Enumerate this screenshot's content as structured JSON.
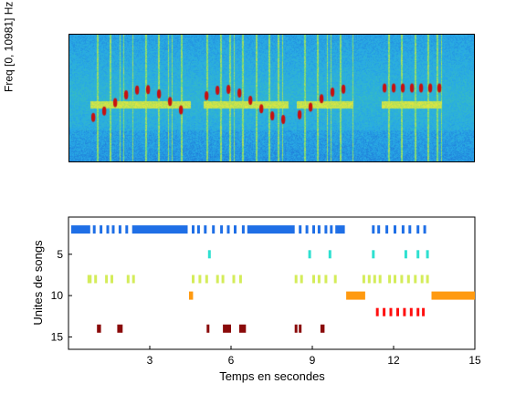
{
  "chart_data": [
    {
      "type": "heatmap",
      "ylabel": "Freq [0, 10981] Hz",
      "colors": {
        "low": "#1a6fd0",
        "mid": "#3bbf8a",
        "high": "#f0e23a",
        "peak": "#c81010"
      },
      "segments": [
        {
          "start": 0.05,
          "end": 0.3
        },
        {
          "start": 0.33,
          "end": 0.54
        },
        {
          "start": 0.56,
          "end": 0.7
        },
        {
          "start": 0.77,
          "end": 0.92
        }
      ]
    },
    {
      "type": "scatter",
      "xlabel": "Temps en secondes",
      "ylabel": "Unites de songs",
      "xlim": [
        0,
        15
      ],
      "ylim": [
        16.5,
        0.5
      ],
      "xticks": [
        3,
        6,
        9,
        12,
        15
      ],
      "yticks": [
        5,
        10,
        15
      ],
      "series": [
        {
          "unit": 2,
          "color": "#1f6fe6",
          "segments": [
            [
              0.1,
              0.8
            ],
            [
              0.9,
              1.0
            ],
            [
              1.15,
              1.25
            ],
            [
              1.4,
              1.5
            ],
            [
              1.6,
              1.7
            ],
            [
              1.85,
              1.95
            ],
            [
              2.1,
              2.2
            ],
            [
              2.35,
              4.4
            ],
            [
              4.55,
              4.65
            ],
            [
              4.75,
              4.85
            ],
            [
              5.0,
              5.1
            ],
            [
              5.3,
              5.4
            ],
            [
              5.6,
              5.7
            ],
            [
              5.85,
              5.95
            ],
            [
              6.1,
              6.2
            ],
            [
              6.4,
              6.5
            ],
            [
              6.6,
              8.35
            ],
            [
              8.5,
              8.6
            ],
            [
              8.75,
              8.85
            ],
            [
              9.0,
              9.1
            ],
            [
              9.2,
              9.3
            ],
            [
              9.45,
              9.55
            ],
            [
              9.65,
              9.75
            ],
            [
              9.85,
              10.2
            ],
            [
              11.2,
              11.3
            ],
            [
              11.4,
              11.5
            ],
            [
              11.7,
              11.8
            ],
            [
              12.0,
              12.1
            ],
            [
              12.3,
              12.4
            ],
            [
              12.55,
              12.65
            ],
            [
              12.85,
              12.95
            ],
            [
              13.1,
              13.2
            ]
          ]
        },
        {
          "unit": 5,
          "color": "#2ee0d0",
          "segments": [
            [
              5.15,
              5.25
            ],
            [
              8.85,
              8.95
            ],
            [
              9.6,
              9.7
            ],
            [
              11.2,
              11.3
            ],
            [
              12.4,
              12.5
            ],
            [
              12.85,
              12.95
            ],
            [
              13.2,
              13.3
            ]
          ]
        },
        {
          "unit": 8,
          "color": "#d4ec5a",
          "segments": [
            [
              0.7,
              0.85
            ],
            [
              0.95,
              1.05
            ],
            [
              1.35,
              1.45
            ],
            [
              1.55,
              1.65
            ],
            [
              2.15,
              2.25
            ],
            [
              2.35,
              2.45
            ],
            [
              4.55,
              4.65
            ],
            [
              4.8,
              4.9
            ],
            [
              5.05,
              5.15
            ],
            [
              5.45,
              5.55
            ],
            [
              5.65,
              5.75
            ],
            [
              6.05,
              6.15
            ],
            [
              6.3,
              6.4
            ],
            [
              8.35,
              8.45
            ],
            [
              8.55,
              8.65
            ],
            [
              9.0,
              9.1
            ],
            [
              9.2,
              9.3
            ],
            [
              9.45,
              9.55
            ],
            [
              9.8,
              9.9
            ],
            [
              10.85,
              10.95
            ],
            [
              11.05,
              11.15
            ],
            [
              11.25,
              11.35
            ],
            [
              11.45,
              11.55
            ],
            [
              11.8,
              11.9
            ],
            [
              12.0,
              12.1
            ],
            [
              12.25,
              12.35
            ],
            [
              12.5,
              12.6
            ],
            [
              12.75,
              12.85
            ],
            [
              13.0,
              13.1
            ],
            [
              13.2,
              13.3
            ]
          ]
        },
        {
          "unit": 10,
          "color": "#ff9a10",
          "segments": [
            [
              4.45,
              4.6
            ],
            [
              10.25,
              10.95
            ],
            [
              13.4,
              15.0
            ]
          ]
        },
        {
          "unit": 12,
          "color": "#ff1010",
          "segments": [
            [
              11.35,
              11.45
            ],
            [
              11.6,
              11.7
            ],
            [
              11.85,
              11.95
            ],
            [
              12.1,
              12.2
            ],
            [
              12.35,
              12.45
            ],
            [
              12.6,
              12.7
            ],
            [
              12.85,
              12.95
            ],
            [
              13.05,
              13.15
            ]
          ]
        },
        {
          "unit": 14,
          "color": "#8a0a0a",
          "segments": [
            [
              1.05,
              1.2
            ],
            [
              1.8,
              2.0
            ],
            [
              5.1,
              5.2
            ],
            [
              5.7,
              6.0
            ],
            [
              6.3,
              6.55
            ],
            [
              8.35,
              8.45
            ],
            [
              8.5,
              8.6
            ],
            [
              9.3,
              9.45
            ]
          ]
        }
      ]
    }
  ]
}
